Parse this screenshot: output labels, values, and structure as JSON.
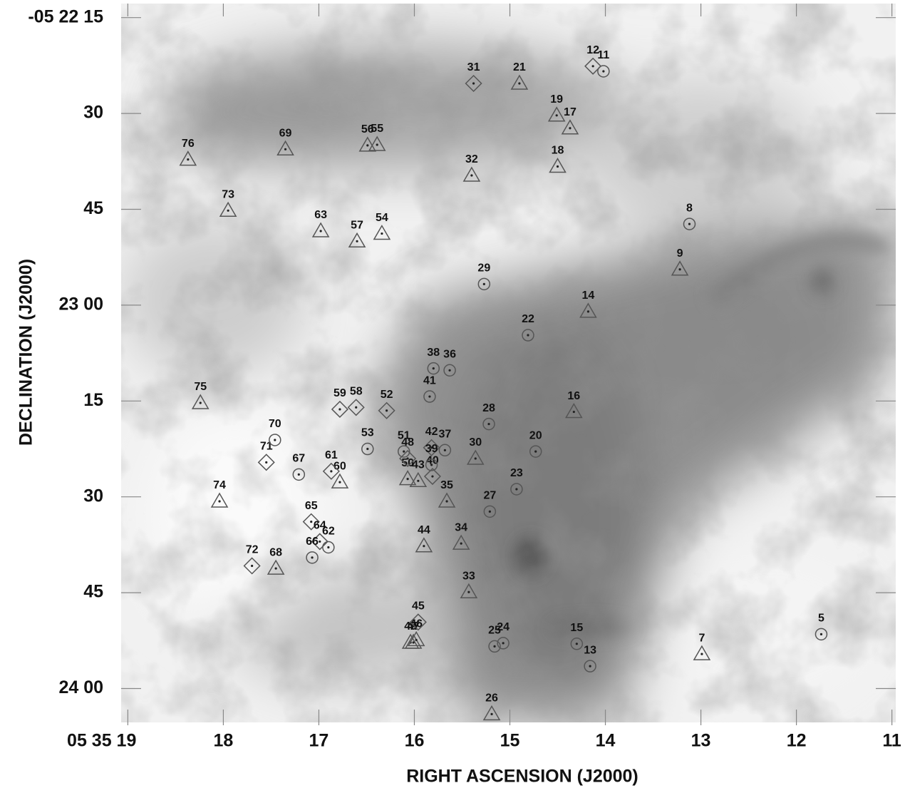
{
  "chart_data": {
    "type": "scatter",
    "xlabel": "RIGHT ASCENSION (J2000)",
    "ylabel": "DECLINATION (J2000)",
    "xlim": [
      19.07,
      10.96
    ],
    "ylim": [
      12.8,
      125.3
    ],
    "xticks": [
      {
        "value": 19,
        "label": "05 35 19"
      },
      18,
      17,
      16,
      15,
      14,
      13,
      12,
      11
    ],
    "yticks": [
      {
        "value": 15,
        "label": "-05 22 15"
      },
      30,
      45,
      {
        "value": 60,
        "label": "23 00"
      },
      {
        "value": 75,
        "label": "15"
      },
      {
        "value": 90,
        "label": "30"
      },
      {
        "value": 105,
        "label": "45"
      },
      {
        "value": 120,
        "label": "24 00"
      }
    ],
    "series": [
      {
        "marker": "triangle",
        "color": "#555555",
        "labels": [
          "76",
          "69",
          "56",
          "55",
          "32",
          "21",
          "19",
          "17",
          "18",
          "73",
          "63",
          "57",
          "54",
          "9",
          "14",
          "75",
          "16",
          "74",
          "60",
          "49",
          "47",
          "46",
          "44",
          "34",
          "33",
          "68",
          "7",
          "26",
          "50",
          "43",
          "35",
          "30"
        ],
        "x": [
          18.37,
          17.35,
          16.49,
          16.39,
          15.4,
          14.9,
          14.51,
          14.37,
          14.5,
          17.95,
          16.98,
          16.6,
          16.34,
          13.22,
          14.18,
          18.24,
          14.33,
          18.04,
          16.78,
          16.04,
          16.01,
          15.98,
          15.9,
          15.51,
          15.43,
          17.45,
          12.99,
          15.19,
          16.07,
          15.96,
          15.66,
          15.36
        ],
        "y": [
          37.2,
          35.6,
          35.0,
          34.9,
          39.7,
          25.3,
          30.3,
          32.3,
          38.3,
          45.2,
          48.4,
          50.0,
          48.8,
          54.4,
          61.0,
          75.3,
          76.7,
          90.7,
          87.7,
          112.8,
          112.8,
          112.4,
          97.7,
          97.3,
          104.9,
          101.2,
          114.6,
          124.0,
          87.2,
          87.5,
          90.7,
          84.0
        ]
      },
      {
        "marker": "diamond",
        "color": "#555555",
        "labels": [
          "31",
          "12",
          "59",
          "58",
          "52",
          "71",
          "61",
          "65",
          "64",
          "72",
          "45",
          "42",
          "40",
          "48"
        ],
        "x": [
          15.38,
          14.13,
          16.78,
          16.61,
          16.29,
          17.55,
          16.87,
          17.08,
          16.99,
          17.7,
          15.96,
          15.82,
          15.81,
          16.07
        ],
        "y": [
          25.3,
          22.6,
          76.3,
          76.0,
          76.5,
          84.6,
          86.0,
          93.9,
          97.0,
          100.8,
          109.6,
          82.3,
          86.8,
          84.0
        ]
      },
      {
        "marker": "circle",
        "color": "#555555",
        "labels": [
          "11",
          "8",
          "29",
          "22",
          "36",
          "38",
          "28",
          "20",
          "70",
          "67",
          "51",
          "23",
          "27",
          "62",
          "66",
          "25",
          "24",
          "15",
          "13",
          "5",
          "37",
          "39",
          "41",
          "53"
        ],
        "x": [
          14.02,
          13.12,
          15.27,
          14.81,
          15.63,
          15.8,
          15.22,
          14.73,
          17.46,
          17.21,
          16.11,
          14.93,
          15.21,
          16.9,
          17.07,
          15.16,
          15.07,
          14.3,
          14.16,
          11.74,
          15.68,
          15.82,
          15.84,
          16.49
        ],
        "y": [
          23.4,
          47.3,
          56.7,
          64.7,
          70.2,
          69.9,
          78.6,
          82.9,
          81.1,
          86.5,
          82.9,
          88.8,
          92.3,
          97.9,
          99.5,
          113.4,
          112.9,
          113.0,
          116.5,
          111.5,
          82.7,
          85.0,
          74.3,
          82.5
        ]
      }
    ]
  }
}
